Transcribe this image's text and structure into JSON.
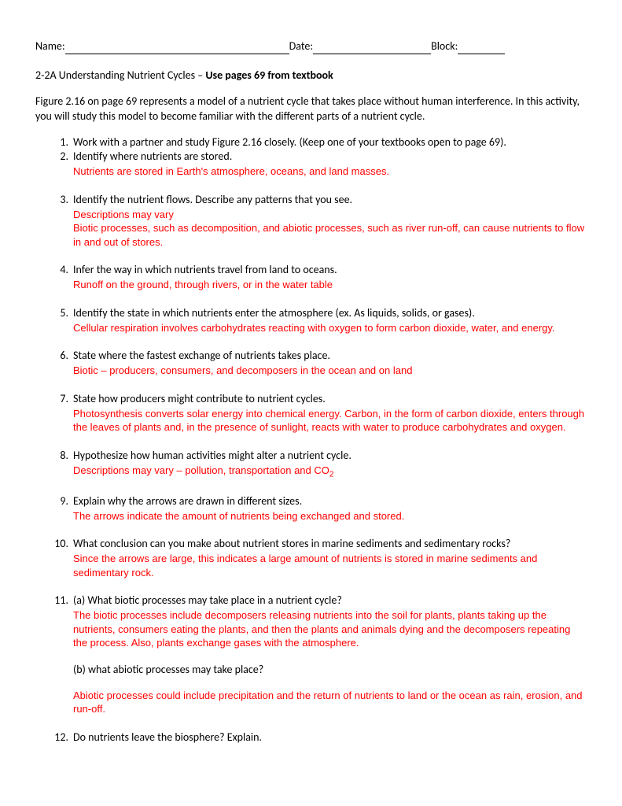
{
  "header": {
    "name_label": "Name:",
    "date_label": "Date:",
    "block_label": "Block:",
    "name_width": 285,
    "date_width": 150,
    "block_width": 60
  },
  "title": {
    "prefix": "2-2A Understanding Nutrient Cycles – ",
    "bold": "Use pages 69 from textbook"
  },
  "intro": "Figure 2.16 on page 69 represents a model of a nutrient cycle that takes place without human interference. In this activity, you will study this model to become familiar with the different parts of a nutrient cycle.",
  "items": [
    {
      "n": "1.",
      "q": "Work with a partner and study Figure 2.16 closely. (Keep one of your textbooks open to page 69).",
      "a": null,
      "tight": true
    },
    {
      "n": "2.",
      "q": "Identify where nutrients are stored.",
      "a": "Nutrients are stored in Earth's atmosphere, oceans, and land masses."
    },
    {
      "n": "3.",
      "q": "Identify the nutrient flows. Describe any patterns that you see.",
      "a": "Descriptions may vary\nBiotic processes, such as decomposition, and abiotic processes, such as river run-off, can cause nutrients to flow in and out of stores."
    },
    {
      "n": "4.",
      "q": "Infer the way in which nutrients travel from land to oceans.",
      "a": "Runoff on the ground, through rivers, or in the water table"
    },
    {
      "n": "5.",
      "q": "Identify the state in which nutrients enter the atmosphere (ex. As liquids, solids, or gases).",
      "a": "Cellular respiration involves carbohydrates reacting with oxygen to form carbon dioxide, water, and energy."
    },
    {
      "n": "6.",
      "q": "State where the fastest exchange of nutrients takes place.",
      "a": "Biotic – producers, consumers, and decomposers in the ocean and on land"
    },
    {
      "n": "7.",
      "q": "State how producers might contribute to nutrient cycles.",
      "a": "Photosynthesis converts solar energy into chemical energy. Carbon, in the form of carbon dioxide, enters through the leaves of plants and, in the presence of sunlight, reacts with water to produce carbohydrates and oxygen."
    },
    {
      "n": "8.",
      "q": "Hypothesize how human activities might alter a nutrient cycle.",
      "a": "Descriptions may vary – pollution, transportation and CO",
      "sub2": true
    },
    {
      "n": "9.",
      "q": "Explain why the arrows are drawn in different sizes.",
      "a": "The arrows indicate the amount of nutrients being exchanged and stored."
    },
    {
      "n": "10.",
      "q": "What conclusion can you make about nutrient stores in marine sediments and sedimentary rocks?",
      "a": "Since the arrows are large, this indicates a large amount of nutrients is stored in marine sediments and sedimentary rock."
    },
    {
      "n": "11.",
      "q": "(a) What biotic processes may take place in a nutrient cycle?",
      "a": "The biotic processes include decomposers releasing nutrients into the soil for plants, plants taking up the nutrients, consumers eating the plants, and then the plants and animals dying and the decomposers repeating the process. Also, plants exchange gases with the atmosphere.",
      "q2": "(b) what abiotic processes may take place?",
      "a2": "Abiotic processes could include precipitation and the return of nutrients to land or the ocean as rain, erosion, and run-off."
    },
    {
      "n": "12.",
      "q": "Do nutrients leave the biosphere?  Explain.",
      "a": null
    }
  ]
}
